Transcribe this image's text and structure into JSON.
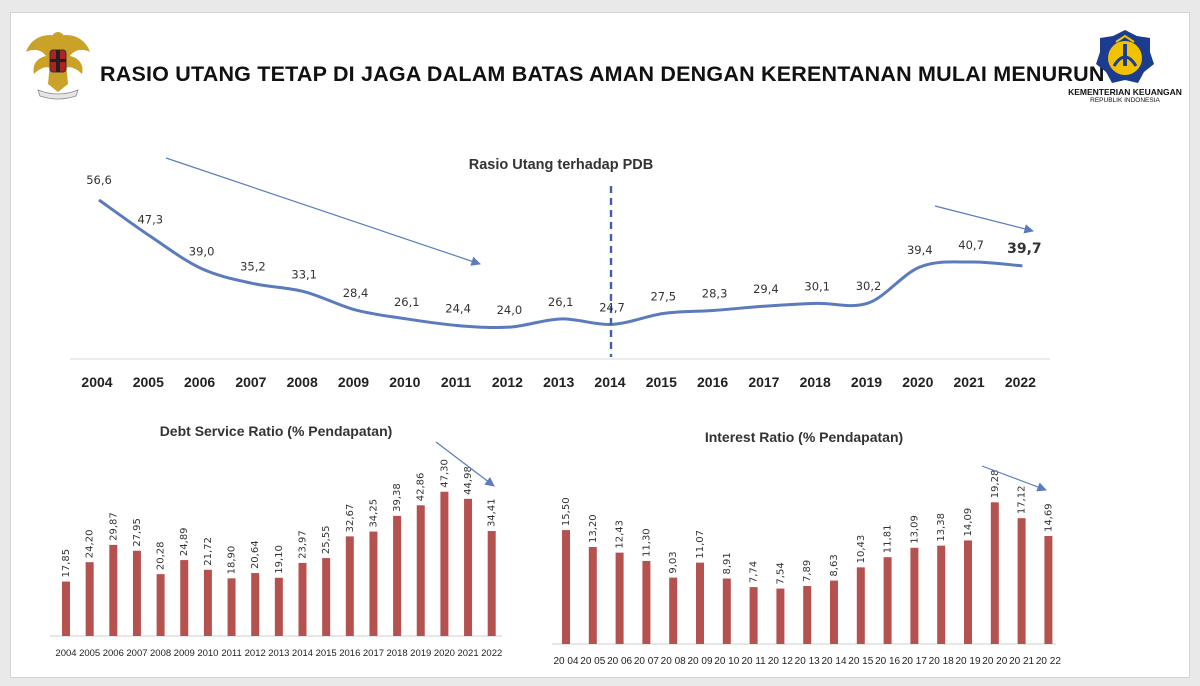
{
  "header": {
    "title": "RASIO UTANG TETAP DI JAGA DALAM BATAS AMAN DENGAN KERENTANAN MULAI MENURUN",
    "ministry_name": "KEMENTERIAN KEUANGAN",
    "ministry_subtitle": "REPUBLIK INDONESIA"
  },
  "colors": {
    "line": "#5b7bbd",
    "bar": "#b5524f",
    "arrow": "#5b7bbd"
  },
  "chart_data": [
    {
      "type": "line",
      "title": "Rasio Utang terhadap PDB",
      "categories": [
        "2004",
        "2005",
        "2006",
        "2007",
        "2008",
        "2009",
        "2010",
        "2011",
        "2012",
        "2013",
        "2014",
        "2015",
        "2016",
        "2017",
        "2018",
        "2019",
        "2020",
        "2021",
        "2022"
      ],
      "values": [
        56.6,
        47.3,
        39.0,
        35.2,
        33.1,
        28.4,
        26.1,
        24.4,
        24.0,
        26.1,
        24.7,
        27.5,
        28.3,
        29.4,
        30.1,
        30.2,
        39.4,
        40.7,
        39.7
      ],
      "labels": [
        "56,6",
        "47,3",
        "39,0",
        "35,2",
        "33,1",
        "28,4",
        "26,1",
        "24,4",
        "24,0",
        "26,1",
        "24,7",
        "27,5",
        "28,3",
        "29,4",
        "30,1",
        "30,2",
        "39,4",
        "40,7",
        "39,7"
      ],
      "highlight": "2022",
      "divider": "2014",
      "trend_arrows": [
        {
          "from": "2005",
          "to": "2012",
          "direction": "down"
        },
        {
          "from": "2021",
          "to": "2022",
          "direction": "down"
        }
      ],
      "ylim": [
        20,
        60
      ],
      "xlabel": "",
      "ylabel": ""
    },
    {
      "type": "bar",
      "title": "Debt Service Ratio (% Pendapatan)",
      "categories": [
        "2004",
        "2005",
        "2006",
        "2007",
        "2008",
        "2009",
        "2010",
        "2011",
        "2012",
        "2013",
        "2014",
        "2015",
        "2016",
        "2017",
        "2018",
        "2019",
        "2020",
        "2021",
        "2022"
      ],
      "values": [
        17.85,
        24.2,
        29.87,
        27.95,
        20.28,
        24.89,
        21.72,
        18.9,
        20.64,
        19.1,
        23.97,
        25.55,
        32.67,
        34.25,
        39.38,
        42.86,
        47.3,
        44.98,
        34.41
      ],
      "labels": [
        "17,85",
        "24,20",
        "29,87",
        "27,95",
        "20,28",
        "24,89",
        "21,72",
        "18,90",
        "20,64",
        "19,10",
        "23,97",
        "25,55",
        "32,67",
        "34,25",
        "39,38",
        "42,86",
        "47,30",
        "44,98",
        "34,41"
      ],
      "trend_arrow": {
        "from": "2020",
        "to": "2022",
        "direction": "down"
      },
      "ylim": [
        0,
        50
      ],
      "xlabel": "",
      "ylabel": ""
    },
    {
      "type": "bar",
      "title": "Interest Ratio (% Pendapatan)",
      "categories": [
        "20 04",
        "20 05",
        "20 06",
        "20 07",
        "20 08",
        "20 09",
        "20 10",
        "20 11",
        "20 12",
        "20 13",
        "20 14",
        "20 15",
        "20 16",
        "20 17",
        "20 18",
        "20 19",
        "20 20",
        "20 21",
        "20 22"
      ],
      "values": [
        15.5,
        13.2,
        12.43,
        11.3,
        9.03,
        11.07,
        8.91,
        7.74,
        7.54,
        7.89,
        8.63,
        10.43,
        11.81,
        13.09,
        13.38,
        14.09,
        19.28,
        17.12,
        14.69
      ],
      "labels": [
        "15,50",
        "13,20",
        "12,43",
        "11,30",
        "9,03",
        "11,07",
        "8,91",
        "7,74",
        "7,54",
        "7,89",
        "8,63",
        "10,43",
        "11,81",
        "13,09",
        "13,38",
        "14,09",
        "19,28",
        "17,12",
        "14,69"
      ],
      "trend_arrow": {
        "from": "20 20",
        "to": "20 22",
        "direction": "down"
      },
      "ylim": [
        0,
        20
      ],
      "xlabel": "",
      "ylabel": ""
    }
  ]
}
